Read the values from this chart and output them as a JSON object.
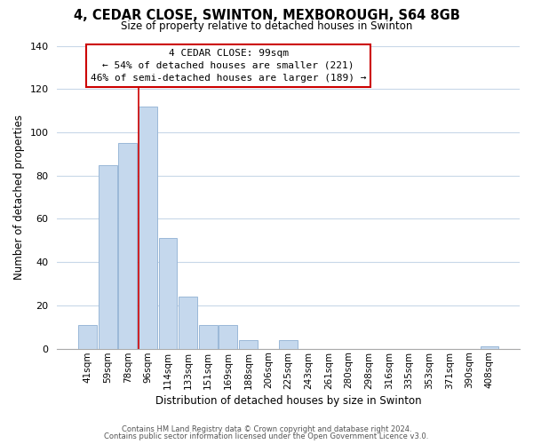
{
  "title_line1": "4, CEDAR CLOSE, SWINTON, MEXBOROUGH, S64 8GB",
  "title_line2": "Size of property relative to detached houses in Swinton",
  "xlabel": "Distribution of detached houses by size in Swinton",
  "ylabel": "Number of detached properties",
  "categories": [
    "41sqm",
    "59sqm",
    "78sqm",
    "96sqm",
    "114sqm",
    "133sqm",
    "151sqm",
    "169sqm",
    "188sqm",
    "206sqm",
    "225sqm",
    "243sqm",
    "261sqm",
    "280sqm",
    "298sqm",
    "316sqm",
    "335sqm",
    "353sqm",
    "371sqm",
    "390sqm",
    "408sqm"
  ],
  "values": [
    11,
    85,
    95,
    112,
    51,
    24,
    11,
    11,
    4,
    0,
    4,
    0,
    0,
    0,
    0,
    0,
    0,
    0,
    0,
    0,
    1
  ],
  "bar_color": "#c5d8ed",
  "bar_edge_color": "#9ab8d8",
  "highlight_line_color": "#cc0000",
  "ylim": [
    0,
    140
  ],
  "yticks": [
    0,
    20,
    40,
    60,
    80,
    100,
    120,
    140
  ],
  "annotation_title": "4 CEDAR CLOSE: 99sqm",
  "annotation_line1": "← 54% of detached houses are smaller (221)",
  "annotation_line2": "46% of semi-detached houses are larger (189) →",
  "annotation_box_color": "#ffffff",
  "annotation_box_edge_color": "#cc0000",
  "footer_line1": "Contains HM Land Registry data © Crown copyright and database right 2024.",
  "footer_line2": "Contains public sector information licensed under the Open Government Licence v3.0.",
  "background_color": "#ffffff",
  "grid_color": "#c8d8e8"
}
